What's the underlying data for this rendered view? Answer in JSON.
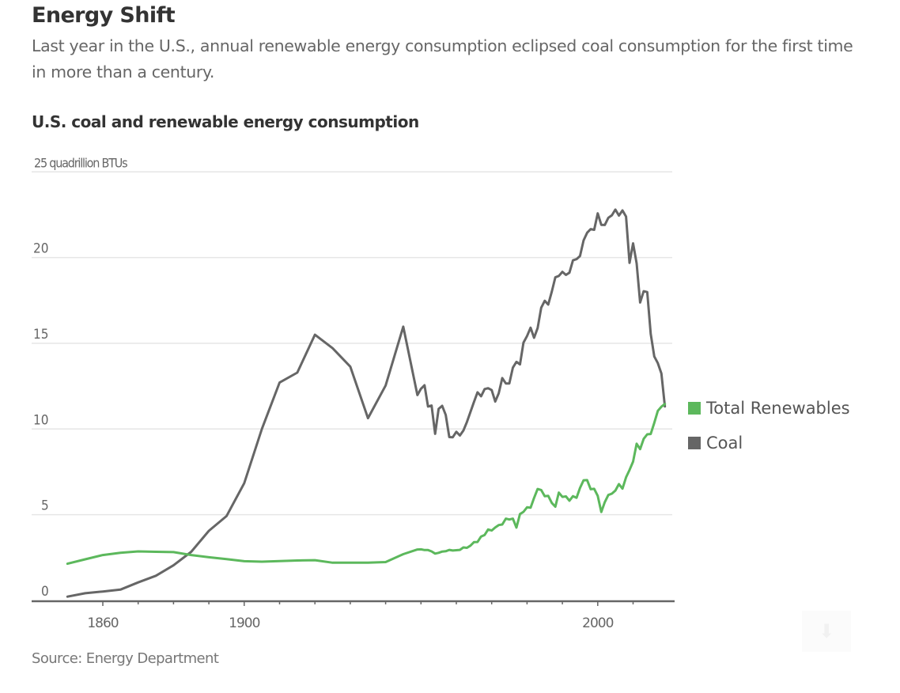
{
  "header": {
    "title": "Energy Shift",
    "subtitle": "Last year in the U.S., annual renewable energy consumption eclipsed coal consumption for the first time in more than a century."
  },
  "footer": {
    "source": "Source: Energy Department",
    "download_icon": "download-icon"
  },
  "colors": {
    "renewables": "#5cb85c",
    "coal": "#666666",
    "gridline": "#e6e6e6",
    "axis": "#666666"
  },
  "chart_data": {
    "type": "line",
    "title": "U.S. coal and renewable energy consumption",
    "xlabel": "",
    "ylabel": "quadrillion BTUs",
    "unit_label": "25 quadrillion BTUs",
    "xlim": [
      1850,
      2019
    ],
    "ylim": [
      0,
      25
    ],
    "grid": true,
    "yticks": [
      0,
      5,
      10,
      15,
      20,
      25
    ],
    "ytick_labels": [
      "0",
      "5",
      "10",
      "15",
      "20",
      "25 quadrillion BTUs"
    ],
    "xticks_minor_every": 10,
    "xtick_labels": [
      {
        "value": 1860,
        "label": "1860"
      },
      {
        "value": 1900,
        "label": "1900"
      },
      {
        "value": 2000,
        "label": "2000"
      }
    ],
    "legend_position": "right",
    "series": [
      {
        "name": "Total Renewables",
        "color": "#5cb85c",
        "x": [
          1850,
          1855,
          1860,
          1865,
          1870,
          1875,
          1880,
          1885,
          1890,
          1895,
          1900,
          1905,
          1910,
          1915,
          1920,
          1925,
          1930,
          1935,
          1940,
          1945,
          1949,
          1950,
          1951,
          1952,
          1953,
          1954,
          1955,
          1956,
          1957,
          1958,
          1959,
          1960,
          1961,
          1962,
          1963,
          1964,
          1965,
          1966,
          1967,
          1968,
          1969,
          1970,
          1971,
          1972,
          1973,
          1974,
          1975,
          1976,
          1977,
          1978,
          1979,
          1980,
          1981,
          1982,
          1983,
          1984,
          1985,
          1986,
          1987,
          1988,
          1989,
          1990,
          1991,
          1992,
          1993,
          1994,
          1995,
          1996,
          1997,
          1998,
          1999,
          2000,
          2001,
          2002,
          2003,
          2004,
          2005,
          2006,
          2007,
          2008,
          2009,
          2010,
          2011,
          2012,
          2013,
          2014,
          2015,
          2016,
          2017,
          2018,
          2019
        ],
        "values": [
          2.14,
          2.4,
          2.65,
          2.78,
          2.86,
          2.84,
          2.82,
          2.65,
          2.52,
          2.41,
          2.29,
          2.26,
          2.3,
          2.33,
          2.35,
          2.2,
          2.2,
          2.2,
          2.24,
          2.7,
          2.97,
          2.98,
          2.94,
          2.94,
          2.86,
          2.73,
          2.78,
          2.85,
          2.87,
          2.95,
          2.91,
          2.93,
          2.95,
          3.09,
          3.07,
          3.2,
          3.4,
          3.41,
          3.73,
          3.82,
          4.14,
          4.08,
          4.26,
          4.4,
          4.43,
          4.77,
          4.72,
          4.77,
          4.25,
          5.04,
          5.17,
          5.43,
          5.41,
          5.98,
          6.5,
          6.44,
          6.08,
          6.1,
          5.69,
          5.47,
          6.29,
          6.04,
          6.07,
          5.82,
          6.08,
          5.99,
          6.56,
          7.01,
          7.02,
          6.49,
          6.51,
          6.1,
          5.16,
          5.73,
          6.15,
          6.23,
          6.41,
          6.79,
          6.52,
          7.18,
          7.61,
          8.1,
          9.14,
          8.83,
          9.43,
          9.69,
          9.71,
          10.36,
          11.06,
          11.3,
          11.46
        ]
      },
      {
        "name": "Coal",
        "color": "#666666",
        "x": [
          1850,
          1855,
          1860,
          1865,
          1870,
          1875,
          1880,
          1885,
          1890,
          1895,
          1900,
          1905,
          1910,
          1915,
          1920,
          1925,
          1930,
          1935,
          1940,
          1945,
          1949,
          1950,
          1951,
          1952,
          1953,
          1954,
          1955,
          1956,
          1957,
          1958,
          1959,
          1960,
          1961,
          1962,
          1963,
          1964,
          1965,
          1966,
          1967,
          1968,
          1969,
          1970,
          1971,
          1972,
          1973,
          1974,
          1975,
          1976,
          1977,
          1978,
          1979,
          1980,
          1981,
          1982,
          1983,
          1984,
          1985,
          1986,
          1987,
          1988,
          1989,
          1990,
          1991,
          1992,
          1993,
          1994,
          1995,
          1996,
          1997,
          1998,
          1999,
          2000,
          2001,
          2002,
          2003,
          2004,
          2005,
          2006,
          2007,
          2008,
          2009,
          2010,
          2011,
          2012,
          2013,
          2014,
          2015,
          2016,
          2017,
          2018,
          2019
        ],
        "values": [
          0.22,
          0.42,
          0.52,
          0.63,
          1.05,
          1.44,
          2.05,
          2.84,
          4.06,
          4.92,
          6.84,
          10.0,
          12.71,
          13.29,
          15.5,
          14.71,
          13.64,
          10.63,
          12.54,
          15.97,
          11.98,
          12.35,
          12.55,
          11.31,
          11.37,
          9.72,
          11.17,
          11.35,
          10.82,
          9.53,
          9.52,
          9.84,
          9.62,
          9.91,
          10.41,
          11.0,
          11.58,
          12.14,
          11.91,
          12.33,
          12.38,
          12.27,
          11.6,
          12.08,
          12.97,
          12.66,
          12.66,
          13.58,
          13.92,
          13.77,
          15.04,
          15.42,
          15.91,
          15.32,
          15.89,
          17.07,
          17.48,
          17.26,
          18.01,
          18.85,
          18.93,
          19.17,
          18.99,
          19.12,
          19.84,
          19.91,
          20.09,
          21.0,
          21.45,
          21.66,
          21.62,
          22.58,
          21.91,
          21.9,
          22.32,
          22.47,
          22.8,
          22.45,
          22.75,
          22.39,
          19.69,
          20.83,
          19.66,
          17.38,
          18.04,
          17.99,
          15.55,
          14.23,
          13.84,
          13.24,
          11.32
        ]
      }
    ]
  }
}
